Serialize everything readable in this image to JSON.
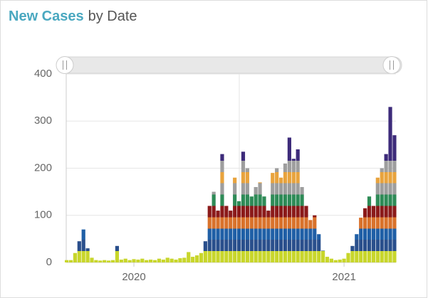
{
  "chart_data": {
    "type": "bar",
    "title_highlight": "New Cases",
    "title_rest": "by Date",
    "x": [
      2019.68,
      2019.7,
      2019.72,
      2019.74,
      2019.76,
      2019.78,
      2019.8,
      2019.82,
      2019.84,
      2019.86,
      2019.88,
      2019.9,
      2019.92,
      2019.94,
      2019.96,
      2019.98,
      2020.0,
      2020.02,
      2020.04,
      2020.06,
      2020.08,
      2020.1,
      2020.12,
      2020.14,
      2020.16,
      2020.18,
      2020.2,
      2020.22,
      2020.24,
      2020.26,
      2020.28,
      2020.3,
      2020.32,
      2020.34,
      2020.36,
      2020.38,
      2020.4,
      2020.42,
      2020.44,
      2020.46,
      2020.48,
      2020.5,
      2020.52,
      2020.54,
      2020.56,
      2020.58,
      2020.6,
      2020.62,
      2020.64,
      2020.66,
      2020.68,
      2020.7,
      2020.72,
      2020.74,
      2020.76,
      2020.78,
      2020.8,
      2020.82,
      2020.84,
      2020.86,
      2020.88,
      2020.9,
      2020.92,
      2020.94,
      2020.96,
      2020.98,
      2021.0,
      2021.02,
      2021.04,
      2021.06,
      2021.08,
      2021.1,
      2021.12,
      2021.14,
      2021.16,
      2021.18,
      2021.2,
      2021.22,
      2021.24
    ],
    "values": [
      5,
      5,
      20,
      45,
      70,
      30,
      10,
      5,
      4,
      5,
      4,
      5,
      35,
      6,
      8,
      5,
      7,
      6,
      8,
      5,
      6,
      5,
      8,
      6,
      10,
      8,
      6,
      9,
      10,
      22,
      12,
      15,
      20,
      45,
      120,
      150,
      110,
      230,
      120,
      110,
      180,
      130,
      235,
      200,
      140,
      160,
      170,
      140,
      110,
      190,
      200,
      180,
      210,
      265,
      220,
      240,
      160,
      120,
      90,
      100,
      60,
      25,
      12,
      8,
      5,
      6,
      8,
      20,
      35,
      60,
      95,
      115,
      140,
      120,
      180,
      200,
      230,
      330,
      270
    ],
    "colors": [
      "#3d2b7a",
      "#9e9e9e",
      "#e8a33d",
      "#9e9e9e",
      "#2e8b57",
      "#8b1a1a",
      "#d9722b",
      "#1f5fa6",
      "#2a4f8c",
      "#c8d62b"
    ],
    "xlim": [
      2019.678,
      2021.247
    ],
    "xticks": [
      2020,
      2021
    ],
    "ylim": [
      0,
      400
    ],
    "yticks": [
      0,
      100,
      200,
      300,
      400
    ],
    "grid": true
  }
}
